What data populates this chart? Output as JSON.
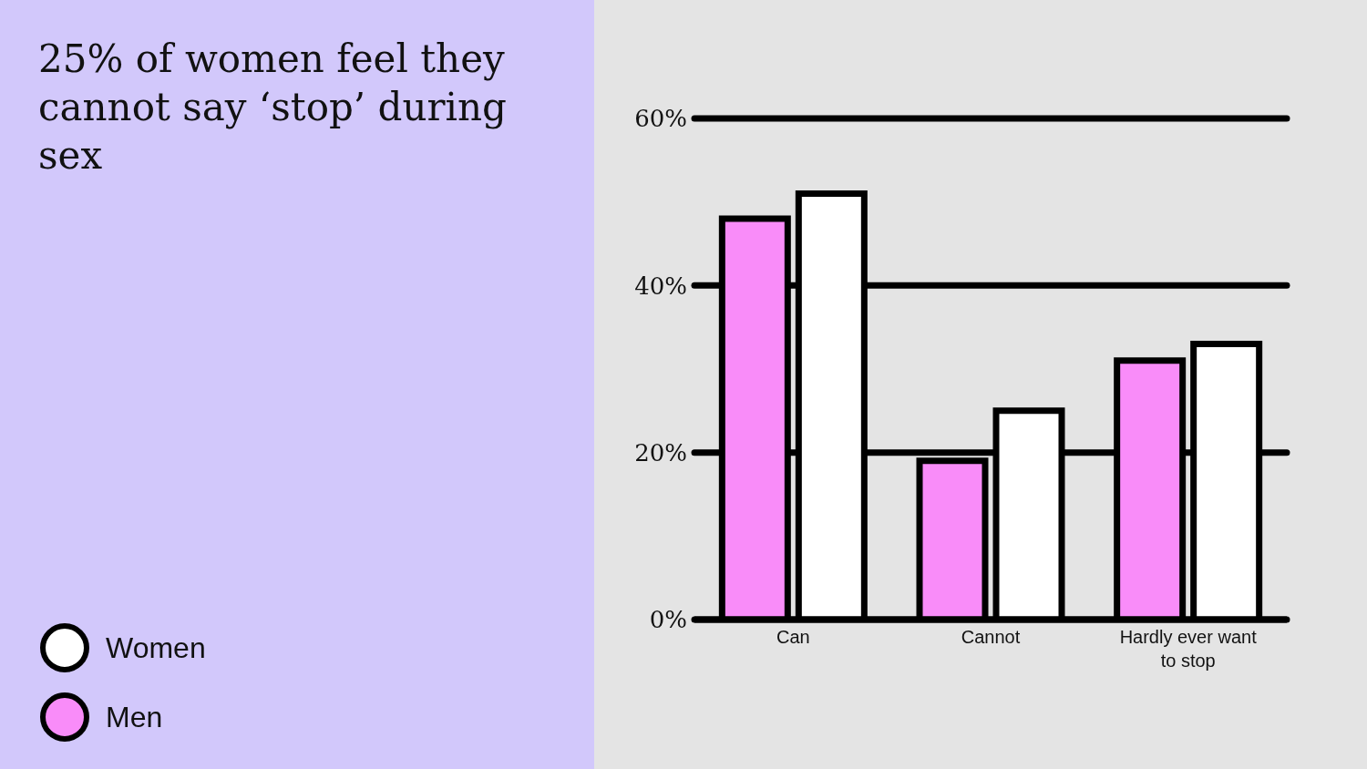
{
  "chart_data": {
    "type": "bar",
    "title": "25% of women feel they cannot say ‘stop’ during sex",
    "categories": [
      "Can",
      "Cannot",
      "Hardly ever want to stop"
    ],
    "series": [
      {
        "name": "Men",
        "color": "#f98cf9",
        "values": [
          48,
          19,
          31
        ]
      },
      {
        "name": "Women",
        "color": "#ffffff",
        "values": [
          51,
          25,
          33
        ]
      }
    ],
    "ylim": [
      0,
      60
    ],
    "yticks": [
      {
        "value": 0,
        "label": "0%"
      },
      {
        "value": 20,
        "label": "20%"
      },
      {
        "value": 40,
        "label": "40%"
      },
      {
        "value": 60,
        "label": "60%"
      }
    ],
    "grid": "y",
    "legend": "left"
  }
}
